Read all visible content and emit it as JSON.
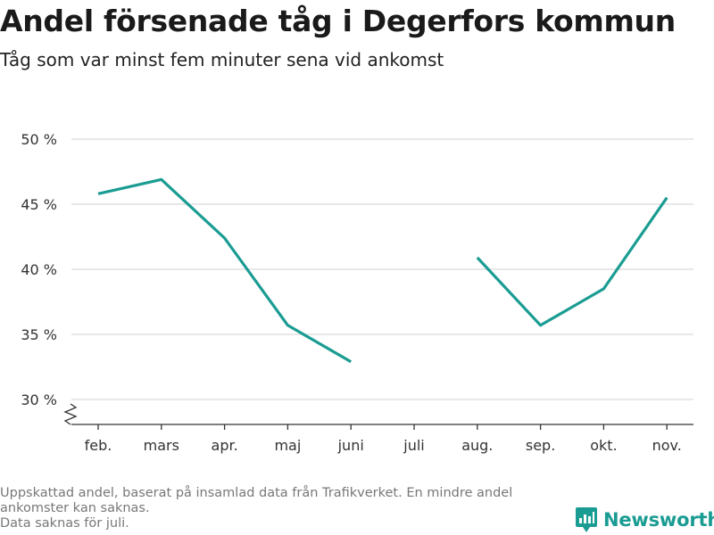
{
  "header": {
    "title": "Andel försenade tåg i Degerfors kommun",
    "subtitle": "Tåg som var minst fem minuter sena vid ankomst"
  },
  "chart_data": {
    "type": "line",
    "title": "Andel försenade tåg i Degerfors kommun",
    "subtitle": "Tåg som var minst fem minuter sena vid ankomst",
    "xlabel": "",
    "ylabel": "",
    "categories": [
      "feb.",
      "mars",
      "apr.",
      "maj",
      "juni",
      "juli",
      "aug.",
      "sep.",
      "okt.",
      "nov."
    ],
    "series": [
      {
        "color": "#1a9c93",
        "values": [
          45.8,
          46.9,
          42.4,
          35.7,
          32.9,
          null,
          40.9,
          35.7,
          38.5,
          45.5
        ]
      }
    ],
    "y_ticks": [
      30,
      35,
      40,
      45,
      50
    ],
    "y_tick_labels": [
      "30 %",
      "35 %",
      "40 %",
      "45 %",
      "50 %"
    ],
    "ylim": [
      30,
      50
    ],
    "y_axis_broken": true,
    "grid": true,
    "legend": "none"
  },
  "footnote": {
    "lines": [
      "Uppskattad andel, baserat på insamlad data från Trafikverket. En mindre andel",
      "ankomster kan saknas.",
      "Data saknas för juli."
    ]
  },
  "brand": {
    "name": "Newsworthy",
    "color": "#1a9c93",
    "icon": "newsworthy-logo-icon"
  }
}
